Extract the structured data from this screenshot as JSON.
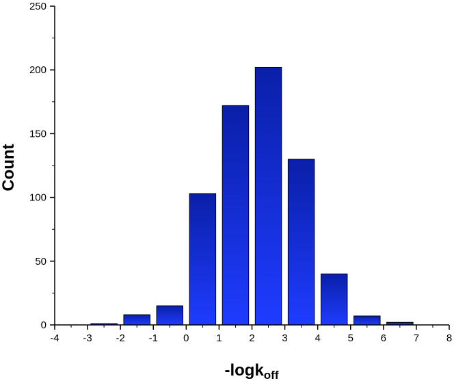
{
  "chart_data": {
    "type": "bar",
    "title": "",
    "xlabel": "-logk",
    "xlabel_sub": "off",
    "ylabel": "Count",
    "xlim": [
      -4,
      8
    ],
    "ylim": [
      0,
      250
    ],
    "x_ticks": [
      -4,
      -3,
      -2,
      -1,
      0,
      1,
      2,
      3,
      4,
      5,
      6,
      7,
      8
    ],
    "y_ticks": [
      0,
      50,
      100,
      150,
      200,
      250
    ],
    "bins": [
      {
        "x0": -3,
        "x1": -2,
        "value": 1
      },
      {
        "x0": -2,
        "x1": -1,
        "value": 8
      },
      {
        "x0": -1,
        "x1": 0,
        "value": 15
      },
      {
        "x0": 0,
        "x1": 1,
        "value": 103
      },
      {
        "x0": 1,
        "x1": 2,
        "value": 172
      },
      {
        "x0": 2,
        "x1": 3,
        "value": 202
      },
      {
        "x0": 3,
        "x1": 4,
        "value": 130
      },
      {
        "x0": 4,
        "x1": 5,
        "value": 40
      },
      {
        "x0": 5,
        "x1": 6,
        "value": 7
      },
      {
        "x0": 6,
        "x1": 7,
        "value": 2
      }
    ],
    "grid": false,
    "bar_color_top": "#0a1fa8",
    "bar_color_bottom": "#1f3cff",
    "bar_edge_color": "#000000"
  }
}
